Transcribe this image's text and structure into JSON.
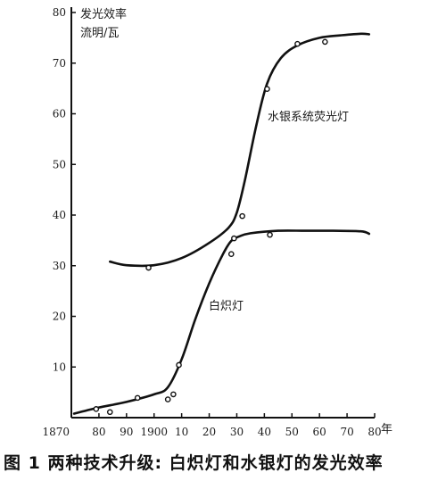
{
  "caption": "图 1  两种技术升级: 白炽灯和水银灯的发光效率",
  "chart_data": {
    "type": "scatter",
    "ylabel_line1": "发光效率",
    "ylabel_line2": "流明/瓦",
    "xunit": "年",
    "xlim": [
      1870,
      1980
    ],
    "ylim": [
      0,
      80
    ],
    "x_ticks": [
      {
        "value": 1870,
        "label": "1870"
      },
      {
        "value": 1880,
        "label": "80"
      },
      {
        "value": 1890,
        "label": "90"
      },
      {
        "value": 1900,
        "label": "1900"
      },
      {
        "value": 1910,
        "label": "10"
      },
      {
        "value": 1920,
        "label": "20"
      },
      {
        "value": 1930,
        "label": "30"
      },
      {
        "value": 1940,
        "label": "40"
      },
      {
        "value": 1950,
        "label": "50"
      },
      {
        "value": 1960,
        "label": "60"
      },
      {
        "value": 1970,
        "label": "70"
      },
      {
        "value": 1980,
        "label": "80"
      }
    ],
    "y_ticks": [
      {
        "value": 10,
        "label": "10"
      },
      {
        "value": 20,
        "label": "20"
      },
      {
        "value": 30,
        "label": "30"
      },
      {
        "value": 40,
        "label": "40"
      },
      {
        "value": 50,
        "label": "50"
      },
      {
        "value": 60,
        "label": "60"
      },
      {
        "value": 70,
        "label": "70"
      },
      {
        "value": 80,
        "label": "80"
      }
    ],
    "series": [
      {
        "name": "白炽灯",
        "points": [
          {
            "x": 1879,
            "y": 1.7
          },
          {
            "x": 1884,
            "y": 1.1
          },
          {
            "x": 1894,
            "y": 3.9
          },
          {
            "x": 1905,
            "y": 3.6
          },
          {
            "x": 1907,
            "y": 4.6
          },
          {
            "x": 1909,
            "y": 10.4
          },
          {
            "x": 1928,
            "y": 32.3
          },
          {
            "x": 1929,
            "y": 35.4
          },
          {
            "x": 1942,
            "y": 36.1
          }
        ],
        "curve": [
          [
            1871,
            0.8
          ],
          [
            1880,
            2.0
          ],
          [
            1890,
            3.1
          ],
          [
            1900,
            4.6
          ],
          [
            1905,
            6.0
          ],
          [
            1910,
            11.5
          ],
          [
            1915,
            19.5
          ],
          [
            1920,
            26.5
          ],
          [
            1925,
            32.3
          ],
          [
            1928,
            34.9
          ],
          [
            1931,
            35.8
          ],
          [
            1935,
            36.4
          ],
          [
            1945,
            36.9
          ],
          [
            1955,
            36.9
          ],
          [
            1965,
            36.9
          ],
          [
            1975,
            36.8
          ],
          [
            1978,
            36.3
          ]
        ]
      },
      {
        "name": "水银系统荧光灯",
        "points": [
          {
            "x": 1898,
            "y": 29.6
          },
          {
            "x": 1932,
            "y": 39.8
          },
          {
            "x": 1941,
            "y": 64.9
          },
          {
            "x": 1952,
            "y": 73.8
          },
          {
            "x": 1962,
            "y": 74.2
          }
        ],
        "curve": [
          [
            1884,
            30.8
          ],
          [
            1890,
            30.1
          ],
          [
            1900,
            30.1
          ],
          [
            1910,
            31.5
          ],
          [
            1920,
            34.5
          ],
          [
            1927,
            37.5
          ],
          [
            1930,
            40.5
          ],
          [
            1933,
            47.0
          ],
          [
            1937,
            57.5
          ],
          [
            1941,
            66.0
          ],
          [
            1946,
            71.0
          ],
          [
            1952,
            73.5
          ],
          [
            1960,
            75.0
          ],
          [
            1968,
            75.5
          ],
          [
            1975,
            75.8
          ],
          [
            1978,
            75.7
          ]
        ]
      }
    ]
  }
}
